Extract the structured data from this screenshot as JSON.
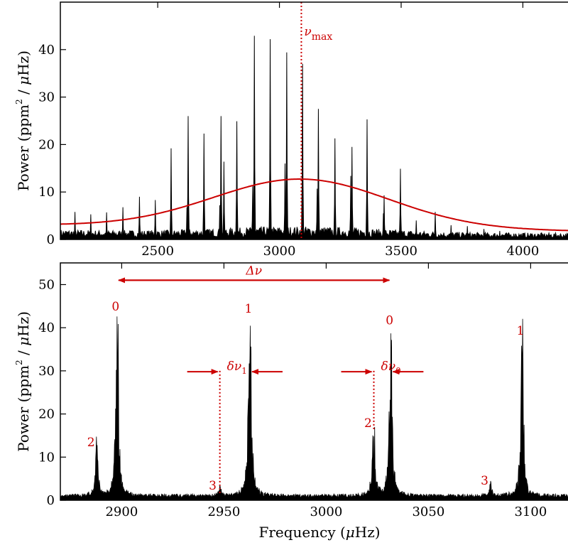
{
  "chart_data": [
    {
      "type": "line",
      "panel": "top",
      "xlim": [
        2100,
        4200
      ],
      "ylim": [
        0,
        50
      ],
      "xticks": [
        2500,
        3000,
        3500,
        4000
      ],
      "xtick_labels": [
        "2500",
        "3000",
        "3500",
        "4000"
      ],
      "yticks": [
        0,
        10,
        20,
        30,
        40
      ],
      "ytick_labels": [
        "0",
        "10",
        "20",
        "30",
        "40"
      ],
      "ylabel": "Power (ppm² / μHz)",
      "ylabel_parts": {
        "base": "Power (ppm",
        "sup": "2",
        "tail": " /",
        "mu": "μ",
        "end": "Hz)"
      },
      "vline": {
        "x": 3090,
        "label": "ν",
        "label_sub": "max",
        "color": "#cc0000"
      },
      "envelope": {
        "name": "",
        "center": 3090,
        "sigma": 360,
        "height": 10.3,
        "background": [
          3.0,
          0.000585
        ],
        "color": "#cc0000"
      },
      "peaks": [
        {
          "x": 2160,
          "y": 5.8
        },
        {
          "x": 2225,
          "y": 5.3
        },
        {
          "x": 2290,
          "y": 5.7
        },
        {
          "x": 2357,
          "y": 6.8
        },
        {
          "x": 2425,
          "y": 9.0
        },
        {
          "x": 2490,
          "y": 8.3
        },
        {
          "x": 2555,
          "y": 19.2
        },
        {
          "x": 2620,
          "y": 6.8
        },
        {
          "x": 2625,
          "y": 26.0
        },
        {
          "x": 2690,
          "y": 22.3
        },
        {
          "x": 2755,
          "y": 7.2
        },
        {
          "x": 2760,
          "y": 26.0
        },
        {
          "x": 2772,
          "y": 16.4
        },
        {
          "x": 2825,
          "y": 24.9
        },
        {
          "x": 2890,
          "y": 11.2
        },
        {
          "x": 2897,
          "y": 42.9
        },
        {
          "x": 2962,
          "y": 42.2
        },
        {
          "x": 3023,
          "y": 16.0
        },
        {
          "x": 3030,
          "y": 39.4
        },
        {
          "x": 3095,
          "y": 37.0
        },
        {
          "x": 3155,
          "y": 10.7
        },
        {
          "x": 3160,
          "y": 27.5
        },
        {
          "x": 3228,
          "y": 21.3
        },
        {
          "x": 3293,
          "y": 13.4
        },
        {
          "x": 3298,
          "y": 19.5
        },
        {
          "x": 3360,
          "y": 25.3
        },
        {
          "x": 3430,
          "y": 9.3
        },
        {
          "x": 3427,
          "y": 5.5
        },
        {
          "x": 3497,
          "y": 14.9
        },
        {
          "x": 3562,
          "y": 4.0
        },
        {
          "x": 3640,
          "y": 5.8
        },
        {
          "x": 3705,
          "y": 3.0
        },
        {
          "x": 3772,
          "y": 2.8
        },
        {
          "x": 3840,
          "y": 2.2
        },
        {
          "x": 3905,
          "y": 1.8
        },
        {
          "x": 3970,
          "y": 1.2
        },
        {
          "x": 4040,
          "y": 1.0
        },
        {
          "x": 4110,
          "y": 0.8
        }
      ]
    },
    {
      "type": "line",
      "panel": "bottom",
      "xlim": [
        2870,
        3120
      ],
      "ylim": [
        0,
        55
      ],
      "xticks": [
        2900,
        2950,
        3000,
        3050,
        3100
      ],
      "xtick_labels": [
        "2900",
        "2950",
        "3000",
        "3050",
        "3100"
      ],
      "yticks": [
        0,
        10,
        20,
        30,
        40,
        50
      ],
      "ytick_labels": [
        "0",
        "10",
        "20",
        "30",
        "40",
        "50"
      ],
      "xlabel": "Frequency (μHz)",
      "xlabel_parts": {
        "base": "Frequency (",
        "mu": "μ",
        "end": "Hz)"
      },
      "ylabel": "Power (ppm² / μHz)",
      "ylabel_parts": {
        "base": "Power (ppm",
        "sup": "2",
        "tail": " /",
        "mu": "μ",
        "end": "Hz)"
      },
      "peaks": [
        {
          "x": 2897.8,
          "y": 42.8,
          "w": 1.4
        },
        {
          "x": 2887.8,
          "y": 11.0,
          "w": 1.4
        },
        {
          "x": 2962.7,
          "y": 42.2,
          "w": 1.5
        },
        {
          "x": 2948.0,
          "y": 1.9,
          "w": 1.4
        },
        {
          "x": 3031.6,
          "y": 39.4,
          "w": 1.4
        },
        {
          "x": 3023.3,
          "y": 16.0,
          "w": 1.5
        },
        {
          "x": 3095.8,
          "y": 37.1,
          "w": 1.4
        },
        {
          "x": 3080.5,
          "y": 2.8,
          "w": 1.3
        }
      ],
      "mode_labels": [
        {
          "x": 2897.0,
          "y": 44.0,
          "text": "0"
        },
        {
          "x": 2885.0,
          "y": 12.5,
          "text": "2"
        },
        {
          "x": 2962.0,
          "y": 43.5,
          "text": "1"
        },
        {
          "x": 2944.5,
          "y": 2.5,
          "text": "3"
        },
        {
          "x": 3031.0,
          "y": 40.8,
          "text": "0"
        },
        {
          "x": 3020.5,
          "y": 17.0,
          "text": "2"
        },
        {
          "x": 3095.0,
          "y": 38.4,
          "text": "1"
        },
        {
          "x": 3077.5,
          "y": 3.6,
          "text": "3"
        }
      ],
      "delta_nu": {
        "x1": 2897.8,
        "x2": 3031.6,
        "y": 51.0,
        "label": "Δν"
      },
      "small_separations": [
        {
          "label": "δν",
          "label_sub": "1",
          "x_dotted": 2948.0,
          "x_peak": 2962.7,
          "y": 29.8,
          "y_dot_top": 30.0,
          "y_dot_bottom": 1.5
        },
        {
          "label": "δν",
          "label_sub": "0",
          "x_dotted": 3023.3,
          "x_peak": 3031.6,
          "y": 29.8,
          "y_dot_top": 30.0,
          "y_dot_bottom": 16.0
        }
      ]
    }
  ],
  "colors": {
    "data": "#000000",
    "annotation": "#cc0000",
    "axes": "#000000"
  }
}
